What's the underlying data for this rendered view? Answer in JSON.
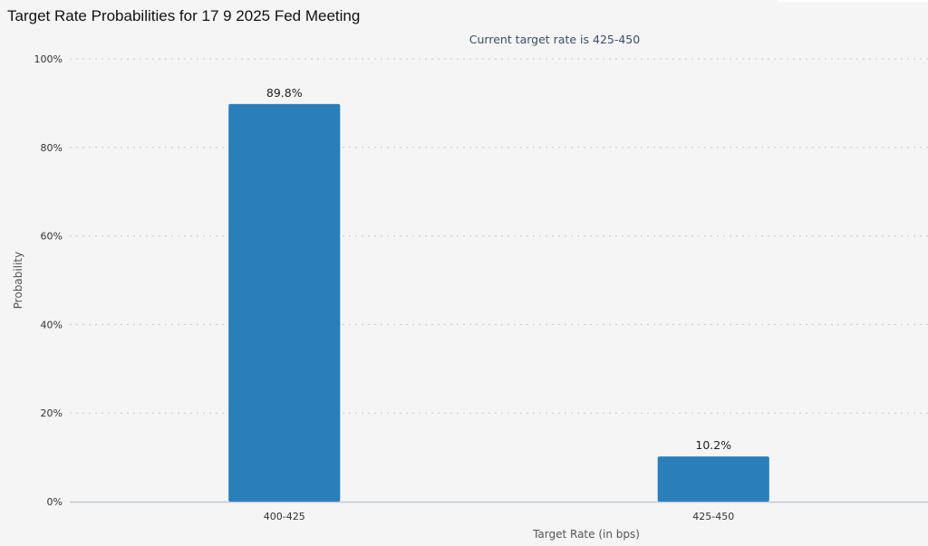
{
  "title": "Target Rate Probabilities for 17 9 2025 Fed Meeting",
  "chart_data": {
    "type": "bar",
    "subtitle": "Current target rate is 425-450",
    "categories": [
      "400-425",
      "425-450"
    ],
    "values": [
      89.8,
      10.2
    ],
    "data_labels": [
      "89.8%",
      "10.2%"
    ],
    "xlabel": "Target Rate (in bps)",
    "ylabel": "Probability",
    "ylim": [
      0,
      100
    ],
    "yticks": [
      "0%",
      "20%",
      "40%",
      "60%",
      "80%",
      "100%"
    ],
    "grid": true,
    "bar_color": "#2a7fba"
  }
}
